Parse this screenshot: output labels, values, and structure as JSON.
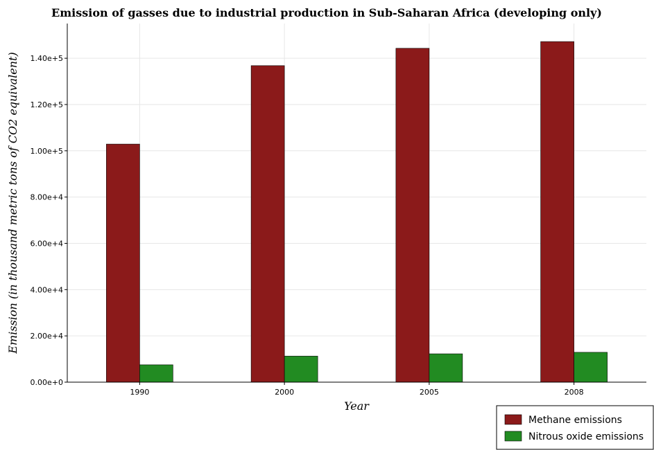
{
  "colors": {
    "methane": "#8b1a1a",
    "nitrous": "#228b22"
  },
  "chart_data": {
    "type": "bar",
    "title": "Emission of gasses due to industrial production in Sub-Saharan Africa (developing only)",
    "xlabel": "Year",
    "ylabel": "Emission (in thousand metric tons of CO2 equivalent)",
    "categories": [
      "1990",
      "2000",
      "2005",
      "2008"
    ],
    "series": [
      {
        "name": "Methane emissions",
        "values": [
          102900,
          136800,
          144300,
          147200
        ]
      },
      {
        "name": "Nitrous oxide emissions",
        "values": [
          7500,
          11250,
          12250,
          12900
        ]
      }
    ],
    "ylim": [
      0,
      155000
    ],
    "yticks": [
      0,
      20000,
      40000,
      60000,
      80000,
      100000,
      120000,
      140000
    ],
    "ytick_labels": [
      "0.00e+0",
      "2.00e+4",
      "4.00e+4",
      "6.00e+4",
      "8.00e+4",
      "1.00e+5",
      "1.20e+5",
      "1.40e+5"
    ],
    "grid": true,
    "legend_position": "bottom-right"
  }
}
